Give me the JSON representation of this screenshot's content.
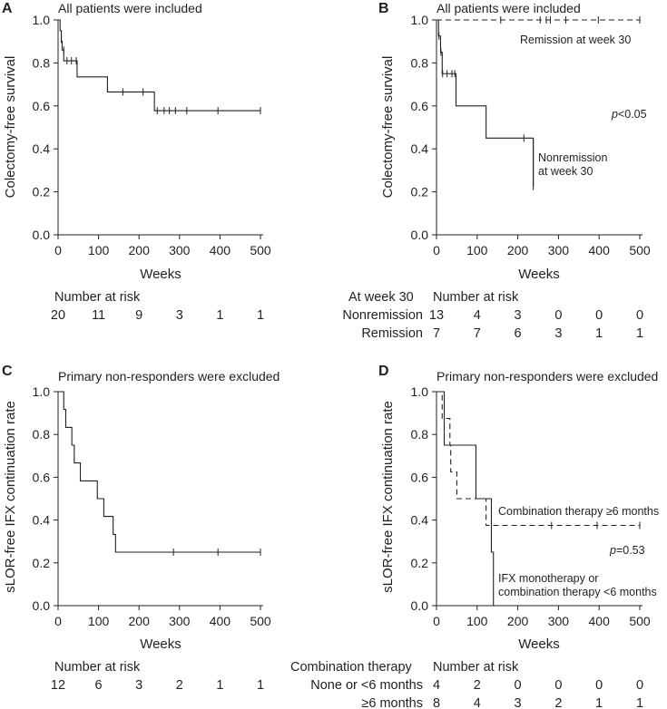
{
  "chart_data": [
    {
      "panel": "A",
      "type": "line",
      "subtype": "kaplan-meier",
      "title": "All patients were included",
      "xlabel": "Weeks",
      "ylabel": "Colectomy-free survival",
      "xlim": [
        0,
        500
      ],
      "ylim": [
        0,
        1.0
      ],
      "xticks": [
        "0",
        "100",
        "200",
        "300",
        "400",
        "500"
      ],
      "yticks": [
        "0.0",
        "0.2",
        "0.4",
        "0.6",
        "0.8",
        "1.0"
      ],
      "series": [
        {
          "name": "All patients",
          "style": "solid",
          "steps": [
            [
              0,
              1.0
            ],
            [
              5,
              0.95
            ],
            [
              8,
              0.9
            ],
            [
              10,
              0.86
            ],
            [
              14,
              0.81
            ],
            [
              47,
              0.735
            ],
            [
              122,
              0.665
            ],
            [
              238,
              0.578
            ],
            [
              500,
              0.578
            ]
          ],
          "censored": [
            [
              8,
              0.91
            ],
            [
              14,
              0.86
            ],
            [
              22,
              0.81
            ],
            [
              33,
              0.81
            ],
            [
              45,
              0.81
            ],
            [
              160,
              0.665
            ],
            [
              210,
              0.665
            ],
            [
              245,
              0.578
            ],
            [
              262,
              0.578
            ],
            [
              275,
              0.578
            ],
            [
              290,
              0.578
            ],
            [
              318,
              0.578
            ],
            [
              395,
              0.578
            ],
            [
              500,
              0.578
            ]
          ]
        }
      ],
      "risk_table": {
        "header": "Number at risk",
        "rows": [
          {
            "label": "",
            "values": [
              "20",
              "11",
              "9",
              "3",
              "1",
              "1"
            ]
          }
        ]
      }
    },
    {
      "panel": "B",
      "type": "line",
      "subtype": "kaplan-meier",
      "title": "All patients were included",
      "xlabel": "Weeks",
      "ylabel": "Colectomy-free survival",
      "xlim": [
        0,
        500
      ],
      "ylim": [
        0,
        1.0
      ],
      "xticks": [
        "0",
        "100",
        "200",
        "300",
        "400",
        "500"
      ],
      "yticks": [
        "0.0",
        "0.2",
        "0.4",
        "0.6",
        "0.8",
        "1.0"
      ],
      "pvalue": {
        "prefix": "p",
        "text": "<0.05"
      },
      "series": [
        {
          "name": "Remission at week 30",
          "label": "Remission at week 30",
          "style": "dashed",
          "steps": [
            [
              0,
              1.0
            ],
            [
              500,
              1.0
            ]
          ],
          "censored": [
            [
              158,
              1.0
            ],
            [
              255,
              1.0
            ],
            [
              270,
              1.0
            ],
            [
              280,
              1.0
            ],
            [
              318,
              1.0
            ],
            [
              398,
              1.0
            ],
            [
              500,
              1.0
            ]
          ]
        },
        {
          "name": "Nonremission at week 30",
          "label_lines": [
            "Nonremission",
            "at week 30"
          ],
          "style": "solid",
          "steps": [
            [
              0,
              1.0
            ],
            [
              5,
              0.925
            ],
            [
              10,
              0.85
            ],
            [
              14,
              0.75
            ],
            [
              48,
              0.6
            ],
            [
              122,
              0.45
            ],
            [
              238,
              0.225
            ]
          ],
          "censored": [
            [
              6,
              0.925
            ],
            [
              11,
              0.85
            ],
            [
              15,
              0.75
            ],
            [
              26,
              0.75
            ],
            [
              38,
              0.75
            ],
            [
              45,
              0.75
            ],
            [
              215,
              0.45
            ],
            [
              238,
              0.225
            ]
          ]
        }
      ],
      "risk_table": {
        "header_left": "At week 30",
        "header": "Number at risk",
        "rows": [
          {
            "label": "Nonremission",
            "values": [
              "13",
              "4",
              "3",
              "0",
              "0",
              "0"
            ]
          },
          {
            "label": "Remission",
            "values": [
              "7",
              "7",
              "6",
              "3",
              "1",
              "1"
            ]
          }
        ]
      }
    },
    {
      "panel": "C",
      "type": "line",
      "subtype": "kaplan-meier",
      "title": "Primary non-responders were excluded",
      "xlabel": "Weeks",
      "ylabel": "sLOR-free IFX continuation rate",
      "xlim": [
        0,
        500
      ],
      "ylim": [
        0,
        1.0
      ],
      "xticks": [
        "0",
        "100",
        "200",
        "300",
        "400",
        "500"
      ],
      "yticks": [
        "0.0",
        "0.2",
        "0.4",
        "0.6",
        "0.8",
        "1.0"
      ],
      "series": [
        {
          "name": "Primary non-responders excluded",
          "style": "solid",
          "steps": [
            [
              0,
              1.0
            ],
            [
              14,
              0.917
            ],
            [
              19,
              0.833
            ],
            [
              34,
              0.75
            ],
            [
              40,
              0.667
            ],
            [
              55,
              0.583
            ],
            [
              97,
              0.5
            ],
            [
              113,
              0.417
            ],
            [
              136,
              0.333
            ],
            [
              142,
              0.25
            ],
            [
              500,
              0.25
            ]
          ],
          "censored": [
            [
              285,
              0.25
            ],
            [
              395,
              0.25
            ],
            [
              500,
              0.25
            ]
          ]
        }
      ],
      "risk_table": {
        "header": "Number at risk",
        "rows": [
          {
            "label": "",
            "values": [
              "12",
              "6",
              "3",
              "2",
              "1",
              "1"
            ]
          }
        ]
      }
    },
    {
      "panel": "D",
      "type": "line",
      "subtype": "kaplan-meier",
      "title": "Primary non-responders were excluded",
      "xlabel": "Weeks",
      "ylabel": "sLOR-free IFX continuation rate",
      "xlim": [
        0,
        500
      ],
      "ylim": [
        0,
        1.0
      ],
      "xticks": [
        "0",
        "100",
        "200",
        "300",
        "400",
        "500"
      ],
      "yticks": [
        "0.0",
        "0.2",
        "0.4",
        "0.6",
        "0.8",
        "1.0"
      ],
      "pvalue": {
        "prefix": "p",
        "text": "=0.53"
      },
      "series": [
        {
          "name": "Combination therapy ≥6 months",
          "label": "Combination therapy ≥6 months",
          "style": "dashed",
          "steps": [
            [
              0,
              1.0
            ],
            [
              14,
              0.875
            ],
            [
              33,
              0.75
            ],
            [
              35,
              0.625
            ],
            [
              50,
              0.5
            ],
            [
              97,
              0.5
            ],
            [
              122,
              0.375
            ],
            [
              500,
              0.375
            ]
          ],
          "censored": [
            [
              283,
              0.375
            ],
            [
              395,
              0.375
            ],
            [
              500,
              0.375
            ]
          ]
        },
        {
          "name": "IFX monotherapy or combination therapy <6 months",
          "label_lines": [
            "IFX monotherapy or",
            "combination therapy <6 months"
          ],
          "style": "solid",
          "steps": [
            [
              0,
              1.0
            ],
            [
              19,
              0.75
            ],
            [
              97,
              0.5
            ],
            [
              135,
              0.25
            ],
            [
              140,
              0.0
            ]
          ],
          "censored": []
        }
      ],
      "risk_table": {
        "header_left": "Combination therapy",
        "header": "Number at risk",
        "rows": [
          {
            "label": "None or <6 months",
            "values": [
              "4",
              "2",
              "0",
              "0",
              "0",
              "0"
            ]
          },
          {
            "label": "≥6 months",
            "values": [
              "8",
              "4",
              "3",
              "2",
              "1",
              "1"
            ]
          }
        ]
      }
    }
  ]
}
